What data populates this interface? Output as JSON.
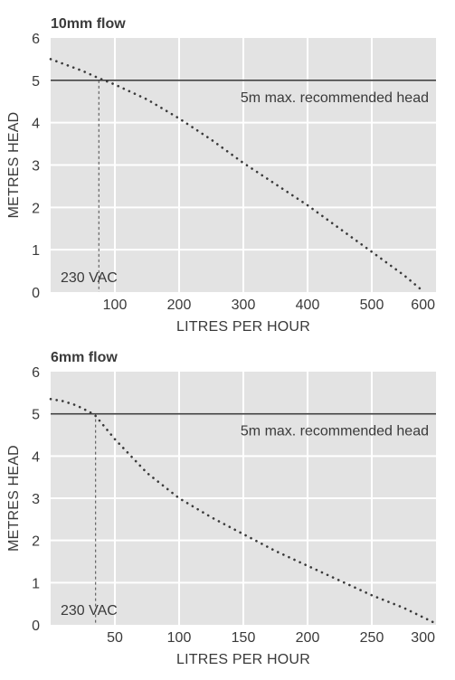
{
  "chart_data": [
    {
      "type": "line",
      "title": "10mm flow",
      "xlabel": "LITRES PER HOUR",
      "ylabel": "METRES HEAD",
      "xlim": [
        0,
        600
      ],
      "ylim": [
        0,
        6
      ],
      "x_ticks": [
        100,
        200,
        300,
        400,
        500,
        600
      ],
      "y_ticks": [
        0,
        1,
        2,
        3,
        4,
        5,
        6
      ],
      "grid": true,
      "background": "#e3e3e3",
      "series": [
        {
          "x": [
            0,
            50,
            75,
            100,
            150,
            200,
            250,
            300,
            350,
            400,
            450,
            500,
            550,
            580
          ],
          "y": [
            5.5,
            5.22,
            5.05,
            4.9,
            4.55,
            4.1,
            3.6,
            3.05,
            2.55,
            2.05,
            1.5,
            0.95,
            0.4,
            0.02
          ]
        }
      ],
      "reference_line": {
        "y": 5,
        "label": "5m max. recommended head"
      },
      "marker_line": {
        "x": 75,
        "label": "230 VAC"
      }
    },
    {
      "type": "line",
      "title": "6mm flow",
      "xlabel": "LITRES PER HOUR",
      "ylabel": "METRES HEAD",
      "xlim": [
        0,
        300
      ],
      "ylim": [
        0,
        6
      ],
      "x_ticks": [
        50,
        100,
        150,
        200,
        250,
        300
      ],
      "y_ticks": [
        0,
        1,
        2,
        3,
        4,
        5,
        6
      ],
      "grid": true,
      "background": "#e3e3e3",
      "series": [
        {
          "x": [
            0,
            10,
            20,
            30,
            35,
            50,
            75,
            100,
            125,
            150,
            175,
            200,
            225,
            250,
            275,
            300
          ],
          "y": [
            5.35,
            5.3,
            5.2,
            5.05,
            4.95,
            4.4,
            3.6,
            3.0,
            2.55,
            2.15,
            1.75,
            1.4,
            1.05,
            0.7,
            0.4,
            0.03
          ]
        }
      ],
      "reference_line": {
        "y": 5,
        "label": "5m max. recommended head"
      },
      "marker_line": {
        "x": 35,
        "label": "230 VAC"
      }
    }
  ]
}
